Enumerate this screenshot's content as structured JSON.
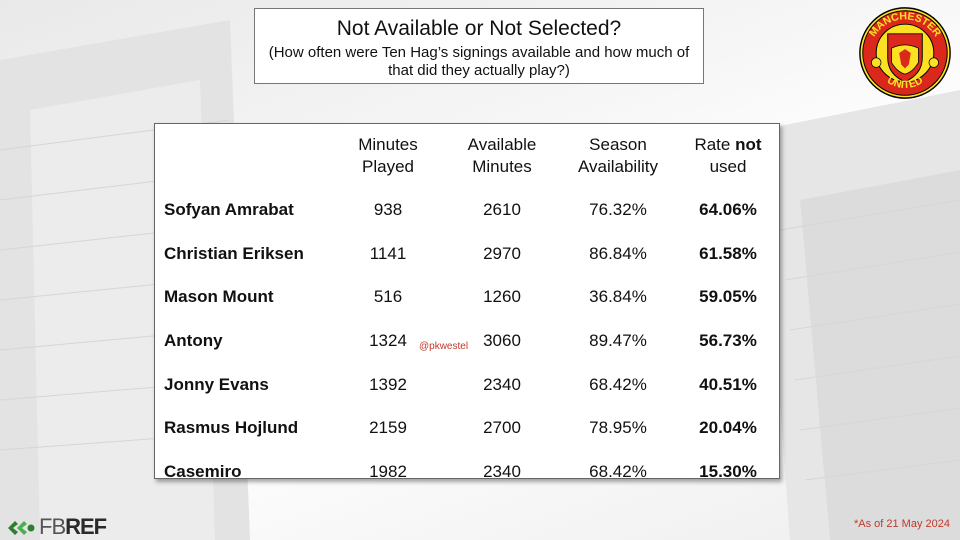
{
  "title": {
    "main": "Not Available or Not Selected?",
    "sub": "(How often were Ten Hag’s signings available and how much of that did they actually play?)"
  },
  "table": {
    "headers": [
      "",
      "Minutes Played",
      "Available Minutes",
      "Season Availability",
      "Rate not used"
    ],
    "header_rate": {
      "prefix": "Rate ",
      "bold": "not",
      "suffix": " used"
    },
    "rows": [
      {
        "player": "Sofyan Amrabat",
        "minutes_played": "938",
        "available_minutes": "2610",
        "season_availability": "76.32%",
        "rate_not_used": "64.06%"
      },
      {
        "player": "Christian Eriksen",
        "minutes_played": "1141",
        "available_minutes": "2970",
        "season_availability": "86.84%",
        "rate_not_used": "61.58%"
      },
      {
        "player": "Mason Mount",
        "minutes_played": "516",
        "available_minutes": "1260",
        "season_availability": "36.84%",
        "rate_not_used": "59.05%"
      },
      {
        "player": "Antony",
        "minutes_played": "1324",
        "available_minutes": "3060",
        "season_availability": "89.47%",
        "rate_not_used": "56.73%"
      },
      {
        "player": "Jonny Evans",
        "minutes_played": "1392",
        "available_minutes": "2340",
        "season_availability": "68.42%",
        "rate_not_used": "40.51%"
      },
      {
        "player": "Rasmus Hojlund",
        "minutes_played": "2159",
        "available_minutes": "2700",
        "season_availability": "78.95%",
        "rate_not_used": "20.04%"
      },
      {
        "player": "Casemiro",
        "minutes_played": "1982",
        "available_minutes": "2340",
        "season_availability": "68.42%",
        "rate_not_used": "15.30%"
      }
    ]
  },
  "handle": "@pkwestel",
  "footnote": "*As of 21 May 2024",
  "logo": {
    "crest_top_text": "MANCHESTER",
    "crest_bottom_text": "UNITED",
    "source_brand_light": "FB",
    "source_brand_bold": "REF"
  },
  "colors": {
    "accent_red": "#c0392b",
    "crest_red": "#da291c",
    "crest_yellow": "#fbe122",
    "fbref_green": "#2e7d32"
  }
}
